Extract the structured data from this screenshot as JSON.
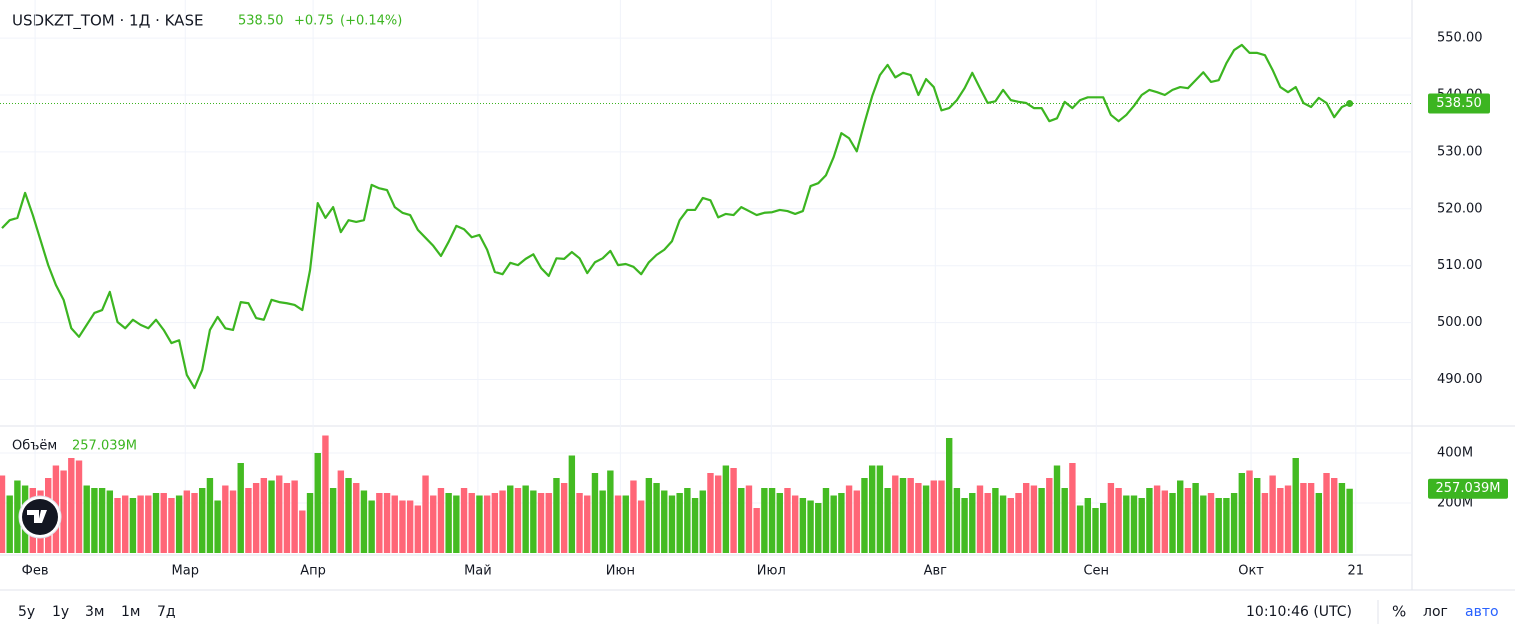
{
  "header": {
    "title": "USDKZT_TOM · 1Д · KASE",
    "last": "538.50",
    "change": "+0.75",
    "change_pct": "(+0.14%)"
  },
  "chart_data": [
    {
      "type": "line",
      "color": "#3cb521",
      "last_label": "538.50",
      "ylim": [
        482,
        556.7
      ],
      "xlim": [
        -0.26,
        183.1
      ],
      "yticks": [
        {
          "value": 490,
          "label": "490.00"
        },
        {
          "value": 500,
          "label": "500.00"
        },
        {
          "value": 510,
          "label": "510.00"
        },
        {
          "value": 520,
          "label": "520.00"
        },
        {
          "value": 530,
          "label": "530.00"
        },
        {
          "value": 540,
          "label": "540.00"
        },
        {
          "value": 550,
          "label": "550.00"
        }
      ],
      "values": [
        516.6,
        518.0,
        518.4,
        522.8,
        518.9,
        514.5,
        510.1,
        506.6,
        504.0,
        499.0,
        497.5,
        499.6,
        501.7,
        502.2,
        505.4,
        500.1,
        499.0,
        500.5,
        499.6,
        499.0,
        500.5,
        498.7,
        496.4,
        496.9,
        490.8,
        488.5,
        491.7,
        498.7,
        501.0,
        499.0,
        498.7,
        503.6,
        503.4,
        500.8,
        500.5,
        504.0,
        503.6,
        503.4,
        503.1,
        502.2,
        509.2,
        521.0,
        518.4,
        520.3,
        515.9,
        518.0,
        517.7,
        518.0,
        524.2,
        523.6,
        523.3,
        520.3,
        519.3,
        518.9,
        516.3,
        514.9,
        513.5,
        511.7,
        514.2,
        517.0,
        516.4,
        515.0,
        515.4,
        512.8,
        508.9,
        508.5,
        510.5,
        510.1,
        511.2,
        512.0,
        509.6,
        508.2,
        511.3,
        511.2,
        512.4,
        511.3,
        508.7,
        510.6,
        511.3,
        512.6,
        510.1,
        510.3,
        509.8,
        508.5,
        510.6,
        511.9,
        512.8,
        514.3,
        518.0,
        519.8,
        519.8,
        521.9,
        521.5,
        518.5,
        519.1,
        518.9,
        520.3,
        519.6,
        518.9,
        519.3,
        519.4,
        519.8,
        519.6,
        519.1,
        519.6,
        524.0,
        524.5,
        525.9,
        529.1,
        533.3,
        532.4,
        530.1,
        535.1,
        539.8,
        543.5,
        545.3,
        543.1,
        543.9,
        543.5,
        540.0,
        542.8,
        541.4,
        537.3,
        537.7,
        539.1,
        541.2,
        543.9,
        541.2,
        538.6,
        538.9,
        540.9,
        539.1,
        538.8,
        538.6,
        537.7,
        537.7,
        535.4,
        535.9,
        538.8,
        537.7,
        539.1,
        539.6,
        539.6,
        539.6,
        536.5,
        535.4,
        536.5,
        538.1,
        540.0,
        540.9,
        540.5,
        540.0,
        540.9,
        541.4,
        541.2,
        542.6,
        544.0,
        542.3,
        542.6,
        545.6,
        547.9,
        548.8,
        547.4,
        547.4,
        547.0,
        544.4,
        541.4,
        540.5,
        541.4,
        538.6,
        537.9,
        539.5,
        538.6,
        536.1,
        537.9,
        538.5
      ]
    },
    {
      "type": "bar",
      "title": "Объём",
      "last_label": "257.039M",
      "ylim": [
        0,
        500
      ],
      "xlim": [
        -0.26,
        183.1
      ],
      "yticks": [
        {
          "value": 200,
          "label": "200M"
        },
        {
          "value": 400,
          "label": "400M"
        }
      ],
      "xticks": [
        {
          "value": 4.3,
          "label": "Фев"
        },
        {
          "value": 23.8,
          "label": "Мар"
        },
        {
          "value": 40.4,
          "label": "Апр"
        },
        {
          "value": 61.8,
          "label": "Май"
        },
        {
          "value": 80.3,
          "label": "Июн"
        },
        {
          "value": 99.9,
          "label": "Июл"
        },
        {
          "value": 121.2,
          "label": "Авг"
        },
        {
          "value": 142.1,
          "label": "Сен"
        },
        {
          "value": 162.2,
          "label": "Окт"
        },
        {
          "value": 175.8,
          "label": "21"
        }
      ],
      "values": [
        310,
        230,
        290,
        270,
        260,
        250,
        300,
        350,
        330,
        380,
        370,
        270,
        260,
        260,
        250,
        220,
        230,
        220,
        230,
        230,
        240,
        240,
        220,
        230,
        250,
        240,
        260,
        300,
        210,
        270,
        250,
        360,
        260,
        280,
        300,
        290,
        310,
        280,
        290,
        170,
        240,
        400,
        470,
        260,
        330,
        300,
        280,
        250,
        210,
        240,
        240,
        230,
        210,
        210,
        190,
        310,
        230,
        260,
        240,
        230,
        260,
        240,
        230,
        230,
        240,
        250,
        270,
        260,
        270,
        250,
        240,
        240,
        300,
        280,
        390,
        240,
        230,
        320,
        250,
        330,
        230,
        230,
        290,
        210,
        300,
        280,
        250,
        230,
        240,
        260,
        220,
        250,
        320,
        310,
        350,
        340,
        260,
        270,
        180,
        260,
        260,
        240,
        260,
        230,
        220,
        210,
        200,
        260,
        230,
        240,
        270,
        250,
        300,
        350,
        350,
        260,
        310,
        300,
        300,
        280,
        270,
        290,
        290,
        460,
        260,
        220,
        240,
        270,
        240,
        260,
        230,
        220,
        240,
        280,
        270,
        260,
        300,
        350,
        260,
        360,
        190,
        220,
        180,
        200,
        280,
        260,
        230,
        230,
        220,
        260,
        270,
        250,
        240,
        290,
        260,
        280,
        230,
        240,
        220,
        220,
        240,
        320,
        330,
        300,
        240,
        310,
        260,
        270,
        380,
        280,
        280,
        240,
        320,
        300,
        280,
        257.039
      ],
      "colors": [
        "#f67",
        "#4b2",
        "#4b2",
        "#4b2",
        "#f67",
        "#f67",
        "#f67",
        "#f67",
        "#f67",
        "#f67",
        "#f67",
        "#4b2",
        "#4b2",
        "#4b2",
        "#4b2",
        "#f67",
        "#f67",
        "#4b2",
        "#f67",
        "#f67",
        "#4b2",
        "#f67",
        "#f67",
        "#4b2",
        "#f67",
        "#f67",
        "#4b2",
        "#4b2",
        "#4b2",
        "#f67",
        "#f67",
        "#4b2",
        "#f67",
        "#f67",
        "#f67",
        "#4b2",
        "#f67",
        "#f67",
        "#f67",
        "#f67",
        "#4b2",
        "#4b2",
        "#f67",
        "#4b2",
        "#f67",
        "#4b2",
        "#f67",
        "#4b2",
        "#4b2",
        "#f67",
        "#f67",
        "#f67",
        "#f67",
        "#f67",
        "#f67",
        "#f67",
        "#f67",
        "#f67",
        "#4b2",
        "#4b2",
        "#f67",
        "#f67",
        "#4b2",
        "#f67",
        "#f67",
        "#f67",
        "#4b2",
        "#f67",
        "#4b2",
        "#4b2",
        "#f67",
        "#f67",
        "#4b2",
        "#f67",
        "#4b2",
        "#f67",
        "#f67",
        "#4b2",
        "#4b2",
        "#4b2",
        "#f67",
        "#4b2",
        "#f67",
        "#f67",
        "#4b2",
        "#4b2",
        "#4b2",
        "#4b2",
        "#4b2",
        "#4b2",
        "#4b2",
        "#4b2",
        "#f67",
        "#f67",
        "#4b2",
        "#f67",
        "#4b2",
        "#f67",
        "#f67",
        "#4b2",
        "#4b2",
        "#4b2",
        "#f67",
        "#f67",
        "#4b2",
        "#4b2",
        "#4b2",
        "#4b2",
        "#4b2",
        "#4b2",
        "#f67",
        "#f67",
        "#4b2",
        "#4b2",
        "#4b2",
        "#4b2",
        "#f67",
        "#4b2",
        "#f67",
        "#f67",
        "#4b2",
        "#f67",
        "#f67",
        "#4b2",
        "#4b2",
        "#4b2",
        "#4b2",
        "#f67",
        "#f67",
        "#4b2",
        "#4b2",
        "#f67",
        "#f67",
        "#f67",
        "#f67",
        "#4b2",
        "#f67",
        "#4b2",
        "#4b2",
        "#f67",
        "#4b2",
        "#4b2",
        "#4b2",
        "#4b2",
        "#f67",
        "#f67",
        "#4b2",
        "#4b2",
        "#4b2",
        "#4b2",
        "#f67",
        "#f67",
        "#4b2",
        "#4b2",
        "#f67",
        "#4b2",
        "#4b2",
        "#f67",
        "#4b2",
        "#4b2",
        "#4b2",
        "#4b2",
        "#f67",
        "#4b2",
        "#f67",
        "#f67",
        "#f67",
        "#f67",
        "#4b2",
        "#f67",
        "#f67",
        "#4b2",
        "#f67",
        "#f67",
        "#4b2",
        "#4b2"
      ],
      "last_color": "#3cb521"
    }
  ],
  "toolbar": {
    "ranges": [
      "5у",
      "1у",
      "3м",
      "1м",
      "7д"
    ],
    "time": "10:10:46 (UTC)",
    "percent": "%",
    "log": "лог",
    "auto": "авто"
  }
}
